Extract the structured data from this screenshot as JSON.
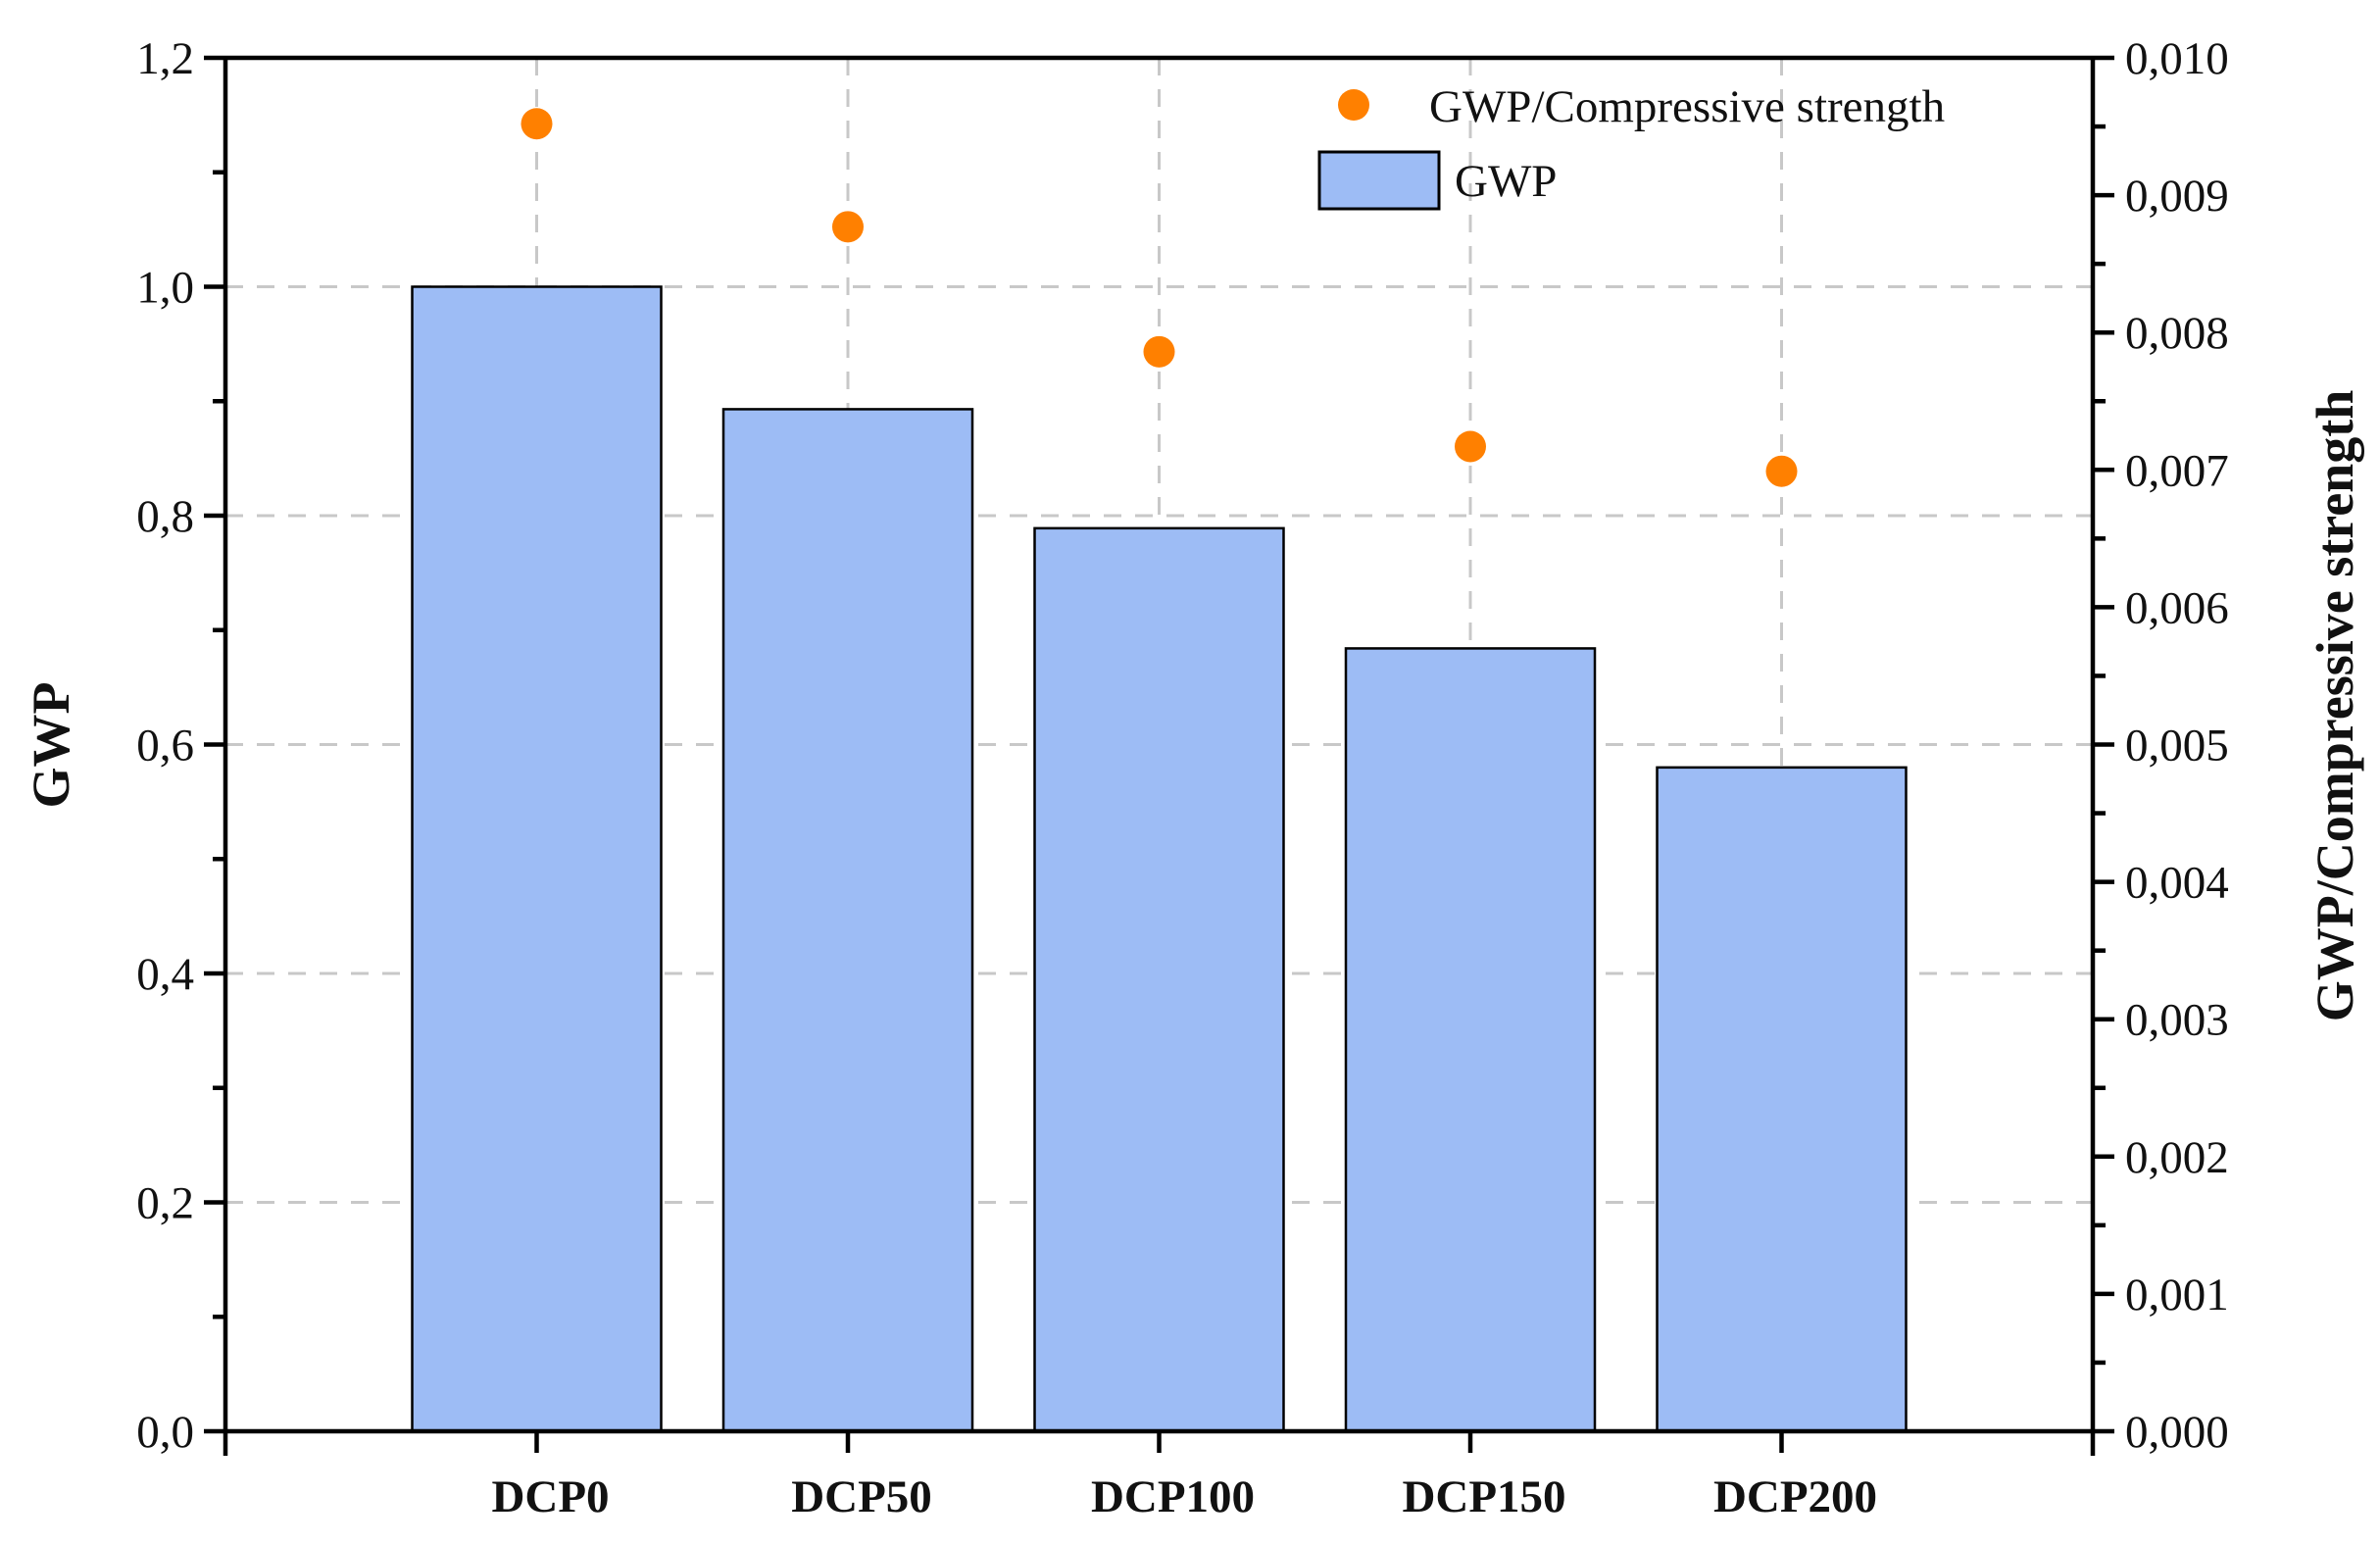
{
  "chart_data": {
    "type": "bar",
    "categories": [
      "DCP0",
      "DCP50",
      "DCP100",
      "DCP150",
      "DCP200"
    ],
    "series": [
      {
        "name": "GWP",
        "type": "bar",
        "axis": "left",
        "color": "#9dbcf5",
        "values": [
          1.0,
          0.893,
          0.789,
          0.684,
          0.58
        ]
      },
      {
        "name": "GWP/Compressive strength",
        "type": "scatter",
        "axis": "right",
        "color": "#ff8000",
        "values": [
          0.00952,
          0.00877,
          0.00786,
          0.00717,
          0.00699
        ]
      }
    ],
    "ylabel": "GWP",
    "ylabel_right": "GWP/Compressive strength",
    "xlabel": "",
    "ylim": [
      0,
      1.2
    ],
    "ylim_right": [
      0,
      0.01
    ],
    "yticks": [
      "0,0",
      "0,2",
      "0,4",
      "0,6",
      "0,8",
      "1,0",
      "1,2"
    ],
    "yticks_right": [
      "0,000",
      "0,001",
      "0,002",
      "0,003",
      "0,004",
      "0,005",
      "0,006",
      "0,007",
      "0,008",
      "0,009",
      "0,010"
    ],
    "grid": true,
    "legend": {
      "placement": "top-right",
      "entries": [
        "GWP/Compressive strength",
        "GWP"
      ]
    }
  }
}
